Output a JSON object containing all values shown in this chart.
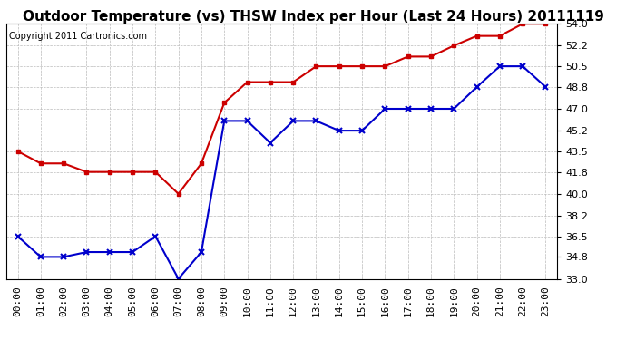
{
  "title": "Outdoor Temperature (vs) THSW Index per Hour (Last 24 Hours) 20111119",
  "copyright": "Copyright 2011 Cartronics.com",
  "hours": [
    "00:00",
    "01:00",
    "02:00",
    "03:00",
    "04:00",
    "05:00",
    "06:00",
    "07:00",
    "08:00",
    "09:00",
    "10:00",
    "11:00",
    "12:00",
    "13:00",
    "14:00",
    "15:00",
    "16:00",
    "17:00",
    "18:00",
    "19:00",
    "20:00",
    "21:00",
    "22:00",
    "23:00"
  ],
  "outdoor_temp": [
    36.5,
    34.8,
    34.8,
    35.2,
    35.2,
    35.2,
    36.5,
    33.0,
    35.2,
    46.0,
    46.0,
    44.2,
    46.0,
    46.0,
    45.2,
    45.2,
    47.0,
    47.0,
    47.0,
    47.0,
    48.8,
    50.5,
    50.5,
    48.8
  ],
  "thsw_index": [
    43.5,
    42.5,
    42.5,
    41.8,
    41.8,
    41.8,
    41.8,
    40.0,
    42.5,
    47.5,
    49.2,
    49.2,
    49.2,
    50.5,
    50.5,
    50.5,
    50.5,
    51.3,
    51.3,
    52.2,
    53.0,
    53.0,
    54.0,
    54.0
  ],
  "temp_color": "#0000cc",
  "thsw_color": "#cc0000",
  "ylim_min": 33.0,
  "ylim_max": 54.0,
  "yticks": [
    33.0,
    34.8,
    36.5,
    38.2,
    40.0,
    41.8,
    43.5,
    45.2,
    47.0,
    48.8,
    50.5,
    52.2,
    54.0
  ],
  "bg_color": "#ffffff",
  "plot_bg_color": "#ffffff",
  "grid_color": "#bbbbbb",
  "title_fontsize": 11,
  "copyright_fontsize": 7,
  "tick_fontsize": 8
}
